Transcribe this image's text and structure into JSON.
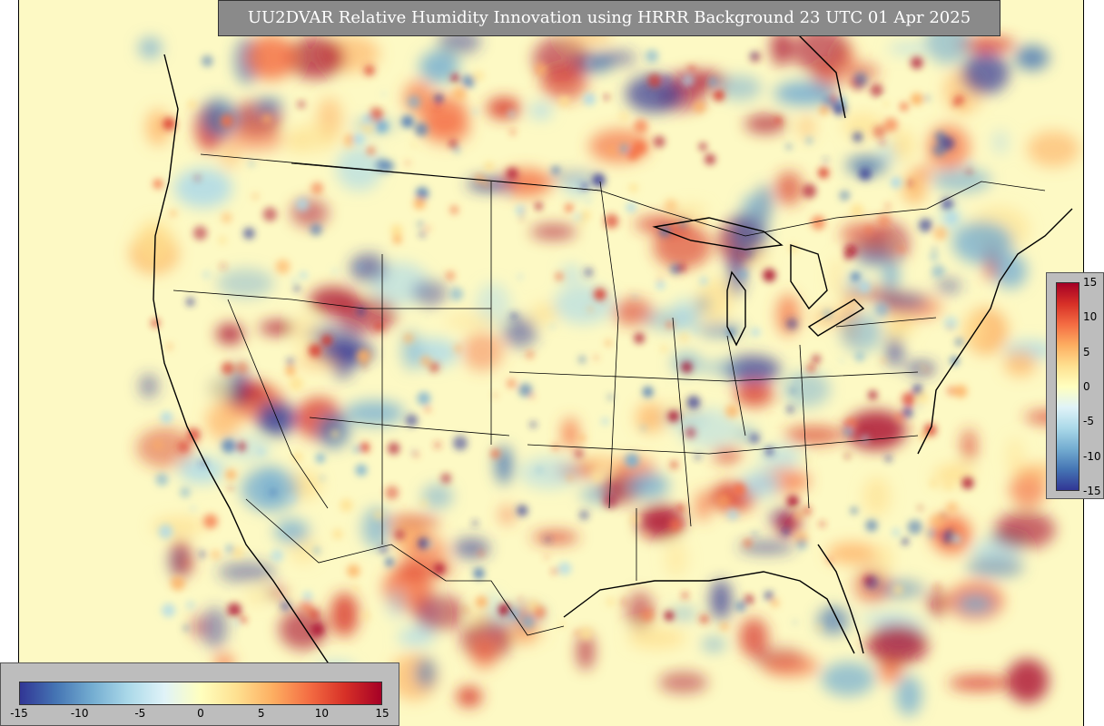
{
  "title": "UU2DVAR Relative Humidity Innovation using HRRR Background 23 UTC 01 Apr 2025",
  "field": "relative-humidity-innovation",
  "colorbar": {
    "min": -15,
    "max": 15,
    "colors": [
      "#313695",
      "#4575b4",
      "#74add1",
      "#abd9e9",
      "#e0f3f8",
      "#ffffbf",
      "#fee090",
      "#fdae61",
      "#f46d43",
      "#d73027",
      "#a50026"
    ],
    "horizontal_ticks": [
      "-15",
      "-10",
      "-5",
      "0",
      "5",
      "10",
      "15"
    ],
    "vertical_ticks": [
      "15",
      "10",
      "5",
      "0",
      "-5",
      "-10",
      "-15"
    ]
  },
  "background_color": "#fdf9c4",
  "border_color": "#000000"
}
